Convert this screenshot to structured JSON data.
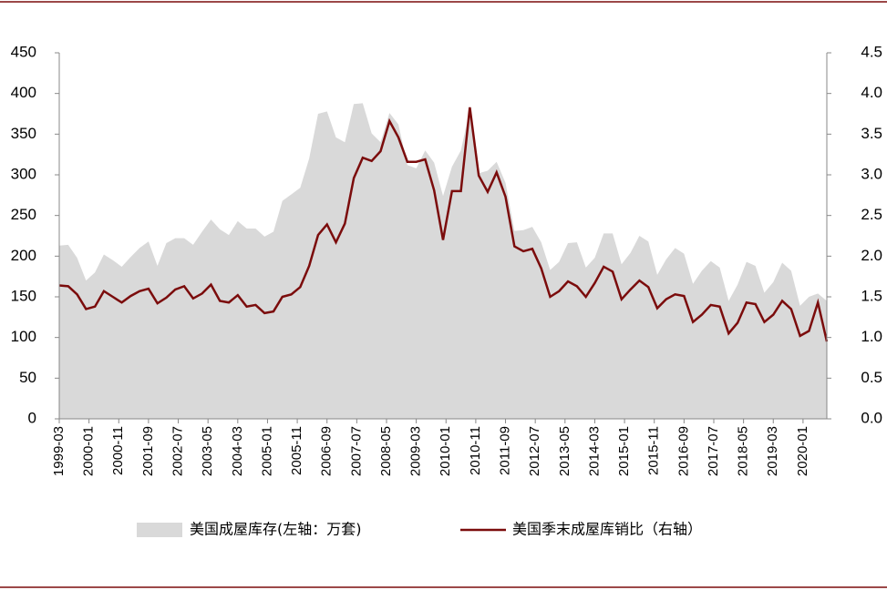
{
  "chart_data": {
    "type": "area_line",
    "x": [
      "1999-03",
      "1999-06",
      "1999-09",
      "1999-12",
      "2000-03",
      "2000-06",
      "2000-09",
      "2000-12",
      "2001-03",
      "2001-06",
      "2001-09",
      "2001-12",
      "2002-03",
      "2002-06",
      "2002-09",
      "2002-12",
      "2003-03",
      "2003-06",
      "2003-09",
      "2003-12",
      "2004-03",
      "2004-06",
      "2004-09",
      "2004-12",
      "2005-03",
      "2005-06",
      "2005-09",
      "2005-12",
      "2006-03",
      "2006-06",
      "2006-09",
      "2006-12",
      "2007-03",
      "2007-06",
      "2007-09",
      "2007-12",
      "2008-03",
      "2008-06",
      "2008-09",
      "2008-12",
      "2009-03",
      "2009-06",
      "2009-09",
      "2009-12",
      "2010-03",
      "2010-06",
      "2010-09",
      "2010-12",
      "2011-03",
      "2011-06",
      "2011-09",
      "2011-12",
      "2012-03",
      "2012-06",
      "2012-09",
      "2012-12",
      "2013-03",
      "2013-06",
      "2013-09",
      "2013-12",
      "2014-03",
      "2014-06",
      "2014-09",
      "2014-12",
      "2015-03",
      "2015-06",
      "2015-09",
      "2015-12",
      "2016-03",
      "2016-06",
      "2016-09",
      "2016-12",
      "2017-03",
      "2017-06",
      "2017-09",
      "2017-12",
      "2018-03",
      "2018-06",
      "2018-09",
      "2018-12",
      "2019-03",
      "2019-06",
      "2019-09",
      "2019-12",
      "2020-03",
      "2020-06",
      "2020-09"
    ],
    "series": [
      {
        "name": "美国成屋库存(左轴：万套)",
        "type": "area",
        "color": "#d9d9d9",
        "values": [
          213,
          214,
          198,
          170,
          180,
          202,
          195,
          187,
          199,
          210,
          218,
          188,
          216,
          222,
          222,
          214,
          230,
          245,
          233,
          226,
          243,
          234,
          234,
          224,
          230,
          268,
          276,
          284,
          320,
          375,
          378,
          346,
          340,
          387,
          388,
          351,
          340,
          376,
          362,
          312,
          308,
          330,
          315,
          274,
          310,
          330,
          380,
          302,
          305,
          316,
          290,
          231,
          232,
          236,
          217,
          183,
          193,
          216,
          217,
          186,
          198,
          228,
          228,
          190,
          204,
          225,
          218,
          177,
          196,
          210,
          203,
          166,
          182,
          194,
          186,
          145,
          165,
          193,
          188,
          155,
          168,
          192,
          182,
          139,
          150,
          154,
          145
        ]
      },
      {
        "name": "美国季末成屋库销比（右轴）",
        "type": "line",
        "axis": "y2",
        "color": "#7b0c0c",
        "values": [
          1.64,
          1.63,
          1.53,
          1.35,
          1.38,
          1.57,
          1.5,
          1.43,
          1.51,
          1.57,
          1.6,
          1.42,
          1.49,
          1.59,
          1.63,
          1.48,
          1.54,
          1.65,
          1.45,
          1.43,
          1.52,
          1.38,
          1.4,
          1.3,
          1.32,
          1.5,
          1.53,
          1.62,
          1.88,
          2.26,
          2.39,
          2.17,
          2.4,
          2.96,
          3.21,
          3.17,
          3.29,
          3.66,
          3.46,
          3.16,
          3.16,
          3.19,
          2.81,
          2.2,
          2.8,
          2.8,
          3.83,
          2.99,
          2.79,
          3.03,
          2.73,
          2.12,
          2.06,
          2.09,
          1.85,
          1.5,
          1.57,
          1.69,
          1.63,
          1.5,
          1.67,
          1.87,
          1.81,
          1.47,
          1.59,
          1.7,
          1.62,
          1.36,
          1.47,
          1.53,
          1.51,
          1.19,
          1.28,
          1.4,
          1.38,
          1.05,
          1.18,
          1.43,
          1.41,
          1.19,
          1.28,
          1.45,
          1.35,
          1.02,
          1.08,
          1.43,
          0.95
        ]
      }
    ],
    "xlim": [
      "1999-03",
      "2020-09"
    ],
    "xticks": [
      "1999-03",
      "2000-01",
      "2000-11",
      "2001-09",
      "2002-07",
      "2003-05",
      "2004-03",
      "2005-01",
      "2005-11",
      "2006-09",
      "2007-07",
      "2008-05",
      "2009-03",
      "2010-01",
      "2010-11",
      "2011-09",
      "2012-07",
      "2013-05",
      "2014-03",
      "2015-01",
      "2015-11",
      "2016-09",
      "2017-07",
      "2018-05",
      "2019-03",
      "2020-01"
    ],
    "ylim": [
      0,
      450
    ],
    "yticks": [
      0,
      50,
      100,
      150,
      200,
      250,
      300,
      350,
      400,
      450
    ],
    "y2lim": [
      0,
      4.5
    ],
    "y2ticks": [
      {
        "value": 0,
        "label": "0.0"
      },
      0.5,
      {
        "value": 1,
        "label": "1.0"
      },
      1.5,
      {
        "value": 2,
        "label": "2.0"
      },
      2.5,
      {
        "value": 3,
        "label": "3.0"
      },
      3.5,
      {
        "value": 4,
        "label": "4.0"
      },
      4.5
    ],
    "legend": "bottom"
  }
}
